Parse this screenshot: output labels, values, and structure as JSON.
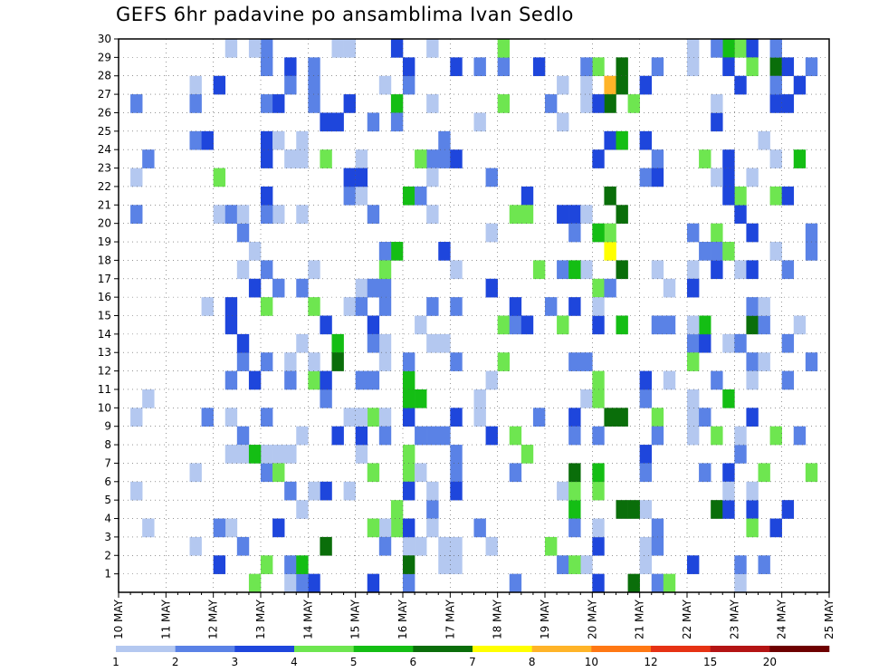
{
  "title": "GEFS 6hr padavine po ansamblima Ivan Sedlo",
  "chart_data": {
    "type": "heatmap",
    "title": "GEFS 6hr padavine po ansamblima Ivan Sedlo",
    "x_time_steps": 60,
    "x_tick_labels": [
      "10 MAY",
      "11 MAY",
      "12 MAY",
      "13 MAY",
      "14 MAY",
      "15 MAY",
      "16 MAY",
      "17 MAY",
      "18 MAY",
      "19 MAY",
      "20 MAY",
      "21 MAY",
      "22 MAY",
      "23 MAY",
      "24 MAY",
      "25 MAY"
    ],
    "y_members": [
      1,
      30
    ],
    "y_tick_labels": [
      "1",
      "2",
      "3",
      "4",
      "5",
      "6",
      "7",
      "8",
      "9",
      "10",
      "11",
      "12",
      "13",
      "14",
      "15",
      "16",
      "17",
      "18",
      "19",
      "20",
      "21",
      "22",
      "23",
      "24",
      "25",
      "26",
      "27",
      "28",
      "29",
      "30"
    ],
    "grid": true,
    "colorbar": {
      "levels": [
        "1",
        "2",
        "3",
        "4",
        "5",
        "6",
        "7",
        "8",
        "10",
        "12",
        "15",
        "20"
      ],
      "colors": [
        "#b4c8f0",
        "#5a82e6",
        "#1e46dc",
        "#6ee650",
        "#14be14",
        "#0a6e0a",
        "#ffff00",
        "#ffb428",
        "#ff7814",
        "#e63214",
        "#b41414",
        "#6e0000"
      ]
    },
    "cells": [
      [
        1,
        4,
        0
      ],
      [
        2,
        4,
        0
      ],
      [
        12,
        4,
        1
      ],
      [
        13,
        4,
        0
      ],
      [
        14,
        4,
        0
      ],
      [
        15,
        4,
        0
      ],
      [
        16,
        4,
        2
      ],
      [
        17,
        4,
        2
      ],
      [
        18,
        4,
        3
      ],
      [
        19,
        4,
        0
      ],
      [
        21,
        4,
        2
      ],
      [
        22,
        4,
        0
      ],
      [
        23,
        4,
        2
      ],
      [
        24,
        4,
        3
      ],
      [
        38,
        4,
        1
      ],
      [
        39,
        4,
        0
      ],
      [
        40,
        4,
        2
      ],
      [
        41,
        4,
        4
      ],
      [
        42,
        4,
        4
      ],
      [
        44,
        4,
        1
      ],
      [
        48,
        4,
        1
      ],
      [
        52,
        4,
        2
      ],
      [
        53,
        4,
        1
      ],
      [
        26,
        3,
        0
      ],
      [
        27,
        3,
        1
      ],
      [
        28,
        3,
        0
      ],
      [
        37,
        3,
        0
      ],
      [
        38,
        3,
        2
      ],
      [
        39,
        3,
        0
      ],
      [
        40,
        3,
        2
      ],
      [
        41,
        3,
        2
      ],
      [
        42,
        3,
        4
      ],
      [
        43,
        3,
        4
      ],
      [
        44,
        3,
        1
      ],
      [
        45,
        3,
        0
      ],
      [
        46,
        3,
        1
      ],
      [
        48,
        3,
        0
      ],
      [
        49,
        3,
        2
      ],
      [
        50,
        3,
        2
      ],
      [
        51,
        3,
        3
      ],
      [
        53,
        3,
        2
      ],
      [
        54,
        3,
        0
      ],
      [
        55,
        3,
        2
      ],
      [
        56,
        3,
        1
      ],
      [
        57,
        3,
        1
      ],
      [
        28,
        2,
        1
      ],
      [
        30,
        2,
        0
      ],
      [
        31,
        2,
        1
      ],
      [
        32,
        2,
        2
      ],
      [
        33,
        2,
        2
      ],
      [
        34,
        2,
        3
      ],
      [
        35,
        2,
        2
      ],
      [
        36,
        2,
        2
      ],
      [
        37,
        2,
        1
      ],
      [
        38,
        2,
        3
      ],
      [
        40,
        2,
        1
      ],
      [
        44,
        2,
        0
      ],
      [
        45,
        2,
        0
      ],
      [
        48,
        2,
        0
      ],
      [
        50,
        2,
        1
      ],
      [
        51,
        2,
        1
      ],
      [
        52,
        2,
        0
      ],
      [
        53,
        2,
        1
      ],
      [
        54,
        2,
        0
      ],
      [
        55,
        2,
        0
      ],
      [
        56,
        2,
        1
      ],
      [
        58,
        2,
        2
      ],
      [
        9,
        2,
        1
      ],
      [
        10,
        2,
        0
      ],
      [
        11,
        2,
        1
      ],
      [
        12,
        2,
        1
      ],
      [
        16,
        2,
        1
      ],
      [
        20,
        2,
        0
      ],
      [
        21,
        2,
        1
      ],
      [
        22,
        2,
        0
      ],
      [
        24,
        2,
        1
      ],
      [
        25,
        2,
        0
      ],
      [
        26,
        2,
        0
      ],
      [
        27,
        2,
        0
      ],
      [
        28,
        2,
        2
      ],
      [
        6,
        3,
        0
      ],
      [
        7,
        3,
        0
      ],
      [
        8,
        3,
        1
      ],
      [
        9,
        3,
        0
      ],
      [
        10,
        3,
        0
      ],
      [
        11,
        3,
        1
      ],
      [
        12,
        3,
        2
      ],
      [
        13,
        3,
        1
      ],
      [
        14,
        3,
        0
      ],
      [
        15,
        3,
        1
      ],
      [
        16,
        3,
        0
      ],
      [
        17,
        3,
        2
      ],
      [
        18,
        3,
        1
      ],
      [
        19,
        3,
        1
      ],
      [
        20,
        3,
        1
      ],
      [
        21,
        3,
        2
      ],
      [
        22,
        3,
        1
      ],
      [
        23,
        3,
        2
      ],
      [
        24,
        3,
        2
      ],
      [
        25,
        3,
        2
      ]
    ],
    "notes": "cells are [time_index, member_row_band, class_index] samples of the ensemble precipitation grid"
  }
}
